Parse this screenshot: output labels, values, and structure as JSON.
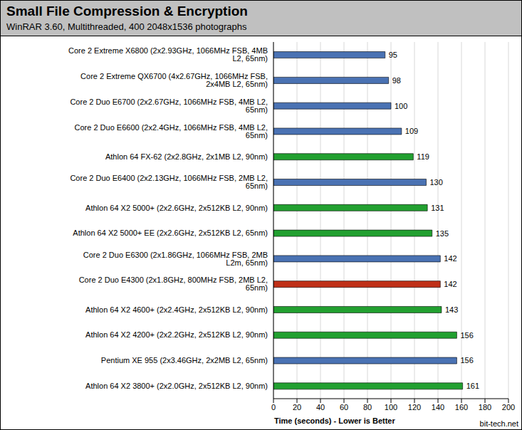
{
  "chart_data": {
    "type": "bar",
    "orientation": "horizontal",
    "title": "Small File Compression & Encryption",
    "subtitle": "WinRAR 3.60, Multithreaded, 400 2048x1536 photographs",
    "x_label": "Time (seconds) - Lower is Better",
    "annotation": "bit-tech.net",
    "categories": [
      "Core 2 Extreme X6800 (2x2.93GHz, 1066MHz FSB, 4MB L2, 65nm)",
      "Core 2 Extreme QX6700 (4x2.67GHz, 1066MHz FSB, 2x4MB L2, 65nm)",
      "Core 2 Duo E6700 (2x2.67GHz, 1066MHz FSB, 4MB L2, 65nm)",
      "Core 2 Duo E6600 (2x2.4GHz, 1066MHz FSB, 4MB L2, 65nm)",
      "Athlon 64 FX-62 (2x2.8GHz, 2x1MB L2, 90nm)",
      "Core 2 Duo E6400 (2x2.13GHz, 1066MHz FSB, 2MB L2, 65nm)",
      "Athlon 64 X2 5000+ (2x2.6GHz, 2x512KB L2, 90nm)",
      "Athlon 64 X2 5000+ EE (2x2.6GHz, 2x512KB L2, 65nm)",
      "Core 2 Duo E6300 (2x1.86GHz, 1066MHz FSB, 2MB L2m, 65nm)",
      "Core 2 Duo E4300 (2x1.8GHz, 800MHz FSB, 2MB L2, 65nm)",
      "Athlon 64 X2 4600+ (2x2.4GHz, 2x512KB L2, 90nm)",
      "Athlon 64 X2 4200+ (2x2.2GHz, 2x512KB L2, 90nm)",
      "Pentium XE 955 (2x3.46GHz, 2x2MB L2, 65nm)",
      "Athlon 64 X2 3800+ (2x2.0GHz, 2x512KB L2, 90nm)"
    ],
    "values": [
      95,
      98,
      100,
      109,
      119,
      130,
      131,
      135,
      142,
      142,
      143,
      156,
      156,
      161
    ],
    "colors": [
      "#4a72b3",
      "#4a72b3",
      "#4a72b3",
      "#4a72b3",
      "#22a030",
      "#4a72b3",
      "#22a030",
      "#22a030",
      "#4a72b3",
      "#bf2f17",
      "#22a030",
      "#22a030",
      "#4a72b3",
      "#22a030"
    ],
    "xlim": [
      0,
      200
    ],
    "xticks": [
      0,
      20,
      40,
      60,
      80,
      100,
      120,
      140,
      160,
      180,
      200
    ],
    "grid": true,
    "data_labels": true
  }
}
